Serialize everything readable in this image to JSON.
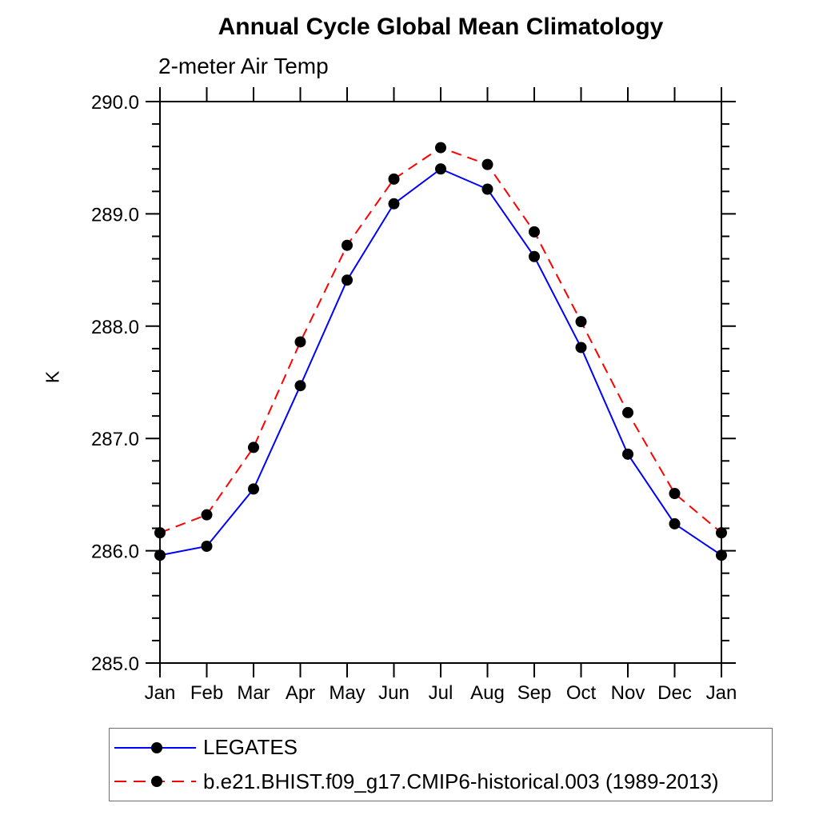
{
  "page": {
    "background_color": "#ffffff",
    "text_color": "#000000",
    "axis_color": "#000000"
  },
  "chart_data": {
    "type": "line",
    "title": "Annual Cycle Global Mean Climatology",
    "subtitle": "2-meter Air Temp",
    "ylabel": "K",
    "xlabel": "",
    "categories": [
      "Jan",
      "Feb",
      "Mar",
      "Apr",
      "May",
      "Jun",
      "Jul",
      "Aug",
      "Sep",
      "Oct",
      "Nov",
      "Dec",
      "Jan"
    ],
    "ylim": [
      285.0,
      290.0
    ],
    "ytick_interval": 1.0,
    "yminor_interval": 0.2,
    "ytick_labels": [
      "285.0",
      "286.0",
      "287.0",
      "288.0",
      "289.0",
      "290.0"
    ],
    "grid": false,
    "legend_position": "bottom-left",
    "marker": "filled-circle",
    "marker_color": "#000000",
    "series": [
      {
        "name": "LEGATES",
        "color": "#0000ff",
        "line_style": "solid",
        "values": [
          285.96,
          286.04,
          286.55,
          287.47,
          288.41,
          289.09,
          289.4,
          289.22,
          288.62,
          287.81,
          286.86,
          286.24,
          285.96
        ]
      },
      {
        "name": "b.e21.BHIST.f09_g17.CMIP6-historical.003 (1989-2013)",
        "color": "#ff0000",
        "line_style": "dashed",
        "values": [
          286.16,
          286.32,
          286.92,
          287.86,
          288.72,
          289.31,
          289.59,
          289.44,
          288.84,
          288.04,
          287.23,
          286.51,
          286.16
        ]
      }
    ]
  }
}
